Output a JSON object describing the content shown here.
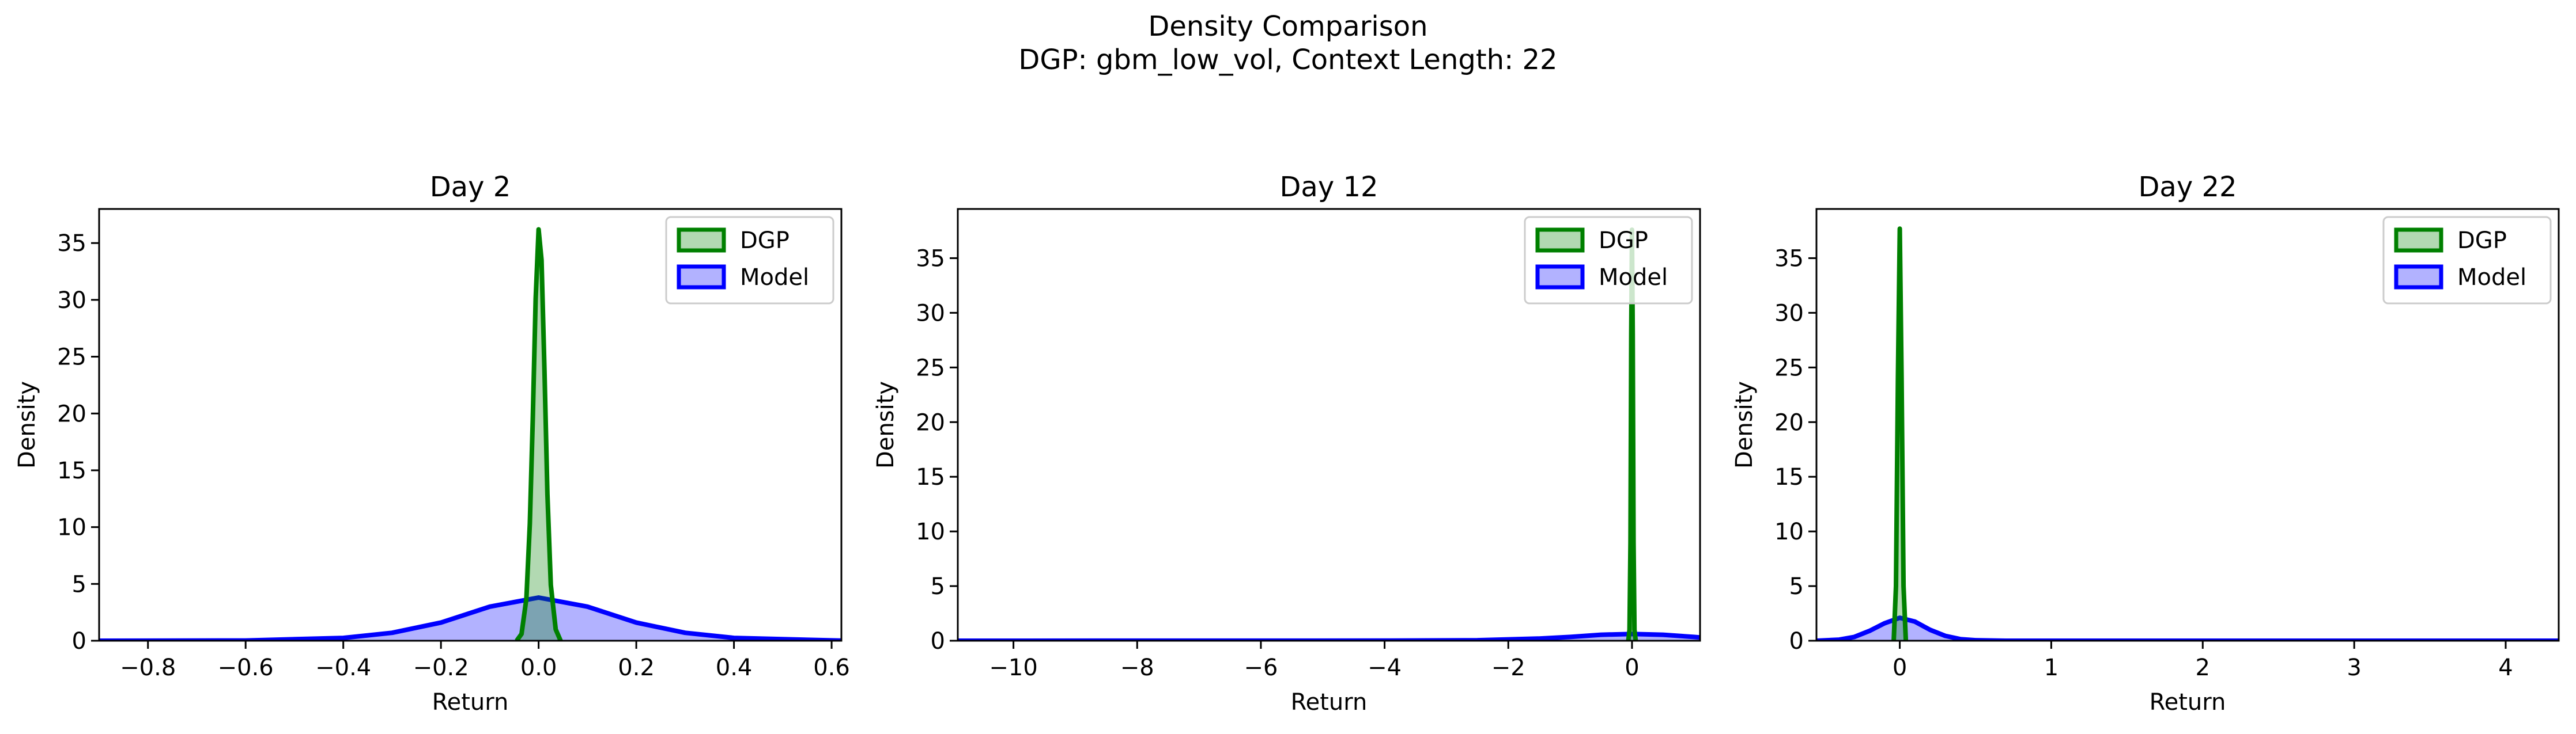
{
  "figure": {
    "suptitle_line1": "Density Comparison",
    "suptitle_line2": "DGP: gbm_low_vol, Context Length: 22"
  },
  "colors": {
    "dgp": "#008000",
    "model": "#0000ff",
    "axes": "#000000",
    "background": "#ffffff"
  },
  "chart_data": [
    {
      "type": "area",
      "title": "Day 2",
      "xlabel": "Return",
      "ylabel": "Density",
      "xlim": [
        -0.9,
        0.62
      ],
      "ylim": [
        0,
        38
      ],
      "xticks": [
        -0.8,
        -0.6,
        -0.4,
        -0.2,
        0.0,
        0.2,
        0.4,
        0.6
      ],
      "xtick_labels": [
        "−0.8",
        "−0.6",
        "−0.4",
        "−0.2",
        "0.0",
        "0.2",
        "0.4",
        "0.6"
      ],
      "yticks": [
        0,
        5,
        10,
        15,
        20,
        25,
        30,
        35
      ],
      "ytick_labels": [
        "0",
        "5",
        "10",
        "15",
        "20",
        "25",
        "30",
        "35"
      ],
      "legend": "top-right",
      "grid": false,
      "series": [
        {
          "name": "DGP",
          "color": "#008000",
          "x": [
            -0.045,
            -0.035,
            -0.025,
            -0.018,
            -0.012,
            -0.006,
            0.0,
            0.006,
            0.012,
            0.018,
            0.025,
            0.035,
            0.045
          ],
          "y": [
            0.0,
            0.6,
            3.7,
            10.3,
            19.5,
            30.1,
            36.2,
            33.5,
            23.8,
            12.9,
            4.9,
            1.0,
            0.0
          ]
        },
        {
          "name": "Model",
          "color": "#0000ff",
          "x": [
            -0.9,
            -0.6,
            -0.4,
            -0.3,
            -0.2,
            -0.1,
            0.0,
            0.1,
            0.2,
            0.3,
            0.4,
            0.62
          ],
          "y": [
            0.0,
            0.02,
            0.25,
            0.7,
            1.6,
            3.0,
            3.8,
            3.0,
            1.6,
            0.7,
            0.25,
            0.01
          ]
        }
      ]
    },
    {
      "type": "area",
      "title": "Day 12",
      "xlabel": "Return",
      "ylabel": "Density",
      "xlim": [
        -10.9,
        1.1
      ],
      "ylim": [
        0,
        39.5
      ],
      "xticks": [
        -10,
        -8,
        -6,
        -4,
        -2,
        0
      ],
      "xtick_labels": [
        "−10",
        "−8",
        "−6",
        "−4",
        "−2",
        "0"
      ],
      "yticks": [
        0,
        5,
        10,
        15,
        20,
        25,
        30,
        35
      ],
      "ytick_labels": [
        "0",
        "5",
        "10",
        "15",
        "20",
        "25",
        "30",
        "35"
      ],
      "legend": "top-right",
      "grid": false,
      "series": [
        {
          "name": "DGP",
          "color": "#008000",
          "x": [
            -0.06,
            -0.04,
            -0.025,
            -0.012,
            0.0,
            0.012,
            0.025,
            0.04,
            0.06
          ],
          "y": [
            0.0,
            1.0,
            9.0,
            28.0,
            37.6,
            28.0,
            9.0,
            1.0,
            0.0
          ]
        },
        {
          "name": "Model",
          "color": "#0000ff",
          "x": [
            -10.9,
            -4.0,
            -2.5,
            -1.5,
            -1.0,
            -0.5,
            0.0,
            0.5,
            1.0,
            1.1
          ],
          "y": [
            0.0,
            0.01,
            0.05,
            0.2,
            0.35,
            0.55,
            0.62,
            0.55,
            0.35,
            0.3
          ]
        }
      ]
    },
    {
      "type": "area",
      "title": "Day 22",
      "xlabel": "Return",
      "ylabel": "Density",
      "xlim": [
        -0.55,
        4.35
      ],
      "ylim": [
        0,
        39.5
      ],
      "xticks": [
        0,
        1,
        2,
        3,
        4
      ],
      "xtick_labels": [
        "0",
        "1",
        "2",
        "3",
        "4"
      ],
      "yticks": [
        0,
        5,
        10,
        15,
        20,
        25,
        30,
        35
      ],
      "ytick_labels": [
        "0",
        "5",
        "10",
        "15",
        "20",
        "25",
        "30",
        "35"
      ],
      "legend": "top-right",
      "grid": false,
      "series": [
        {
          "name": "DGP",
          "color": "#008000",
          "x": [
            -0.04,
            -0.025,
            -0.012,
            0.0,
            0.012,
            0.025,
            0.04
          ],
          "y": [
            0.0,
            5.0,
            24.0,
            37.7,
            24.0,
            5.0,
            0.0
          ]
        },
        {
          "name": "Model",
          "color": "#0000ff",
          "x": [
            -0.55,
            -0.4,
            -0.3,
            -0.2,
            -0.1,
            0.0,
            0.1,
            0.2,
            0.3,
            0.4,
            0.5,
            0.7,
            4.35
          ],
          "y": [
            0.0,
            0.1,
            0.35,
            0.9,
            1.6,
            2.1,
            1.75,
            1.0,
            0.45,
            0.15,
            0.05,
            0.0,
            0.0
          ]
        }
      ]
    }
  ]
}
